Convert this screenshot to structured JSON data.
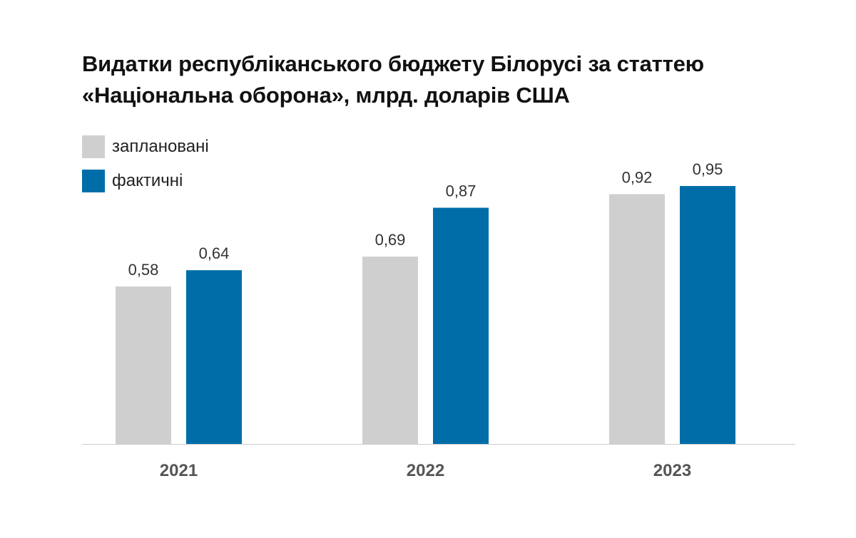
{
  "chart_data": {
    "type": "bar",
    "title_lines": [
      "Видатки республіканського бюджету Білорусі за статтею",
      "«Національна оборона», млрд. доларів США"
    ],
    "categories": [
      "2021",
      "2022",
      "2023"
    ],
    "series": [
      {
        "name": "заплановані",
        "color": "#d0cfd0",
        "values": [
          0.58,
          0.69,
          0.92
        ],
        "labels": [
          "0,58",
          "0,69",
          "0,92"
        ]
      },
      {
        "name": "фактичні",
        "color": "#006da8",
        "values": [
          0.64,
          0.87,
          0.95
        ],
        "labels": [
          "0,64",
          "0,87",
          "0,95"
        ]
      }
    ],
    "ylim": [
      0,
      1
    ],
    "grid": false,
    "legend_position": "top-left",
    "baseline_color": "#cccccc"
  }
}
